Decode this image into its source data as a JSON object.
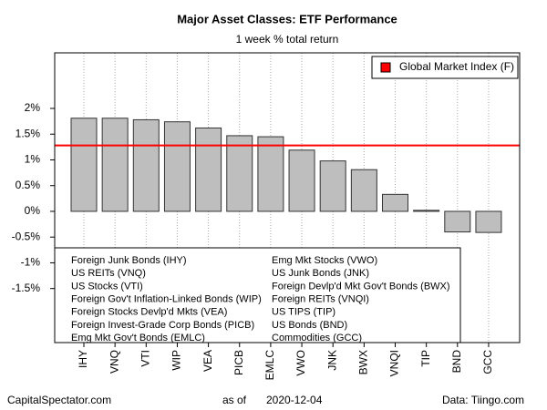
{
  "chart_data": {
    "type": "bar",
    "title": "Major Asset Classes: ETF Performance",
    "subtitle": "1 week % total return",
    "categories": [
      "IHY",
      "VNQ",
      "VTI",
      "WIP",
      "VEA",
      "PICB",
      "EMLC",
      "VWO",
      "JNK",
      "BWX",
      "VNQI",
      "TIP",
      "BND",
      "GCC"
    ],
    "values": [
      1.81,
      1.81,
      1.78,
      1.74,
      1.62,
      1.47,
      1.45,
      1.19,
      0.98,
      0.81,
      0.33,
      0.02,
      -0.4,
      -0.41
    ],
    "color": "#bebebe",
    "ylim": [
      -2.55,
      3.08
    ],
    "yticks": [
      {
        "value": 2,
        "label": "2%"
      },
      {
        "value": 1.5,
        "label": "1.5%"
      },
      {
        "value": 1,
        "label": "1%"
      },
      {
        "value": 0.5,
        "label": "0.5%"
      },
      {
        "value": 0,
        "label": "0%"
      },
      {
        "value": -0.5,
        "label": "-0.5%"
      },
      {
        "value": -1,
        "label": "-1%"
      },
      {
        "value": -1.5,
        "label": "-1.5%"
      }
    ],
    "grid": true,
    "reference_line": {
      "name": "Global Market Index (F)",
      "value": 1.28,
      "color": "#ff0000"
    },
    "legend": {
      "position": "topright"
    },
    "notes": [
      [
        "Foreign Junk Bonds (IHY)",
        "US REITs (VNQ)",
        "US Stocks (VTI)",
        "Foreign Gov't Inflation-Linked Bonds (WIP)",
        "Foreign Stocks Devlp'd Mkts (VEA)",
        "Foreign Invest-Grade Corp Bonds (PICB)",
        "Emg Mkt Gov't Bonds (EMLC)"
      ],
      [
        "Emg Mkt Stocks (VWO)",
        "US Junk Bonds (JNK)",
        "Foreign Devlp'd Mkt Gov't Bonds (BWX)",
        "Foreign REITs (VNQI)",
        "US TIPS (TIP)",
        "US Bonds (BND)",
        "Commodities (GCC)"
      ]
    ],
    "footer": {
      "left": "CapitalSpectator.com",
      "as_of": "as of",
      "date": "2020-12-04",
      "right": "Data: Tiingo.com"
    }
  }
}
